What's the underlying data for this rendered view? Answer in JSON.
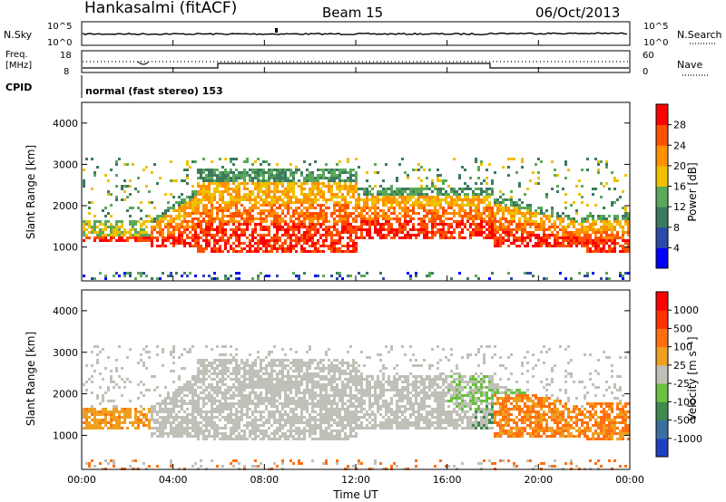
{
  "header": {
    "station": "Hankasalmi (fitACF)",
    "beam": "Beam 15",
    "date": "06/Oct/2013"
  },
  "noise_panel": {
    "left_label": "N.Sky",
    "left_ticks": [
      "10^5",
      "10^0"
    ],
    "right_label": "N.Search",
    "right_ticks": [
      "10^5",
      "10^0"
    ]
  },
  "freq_panel": {
    "left_label_line1": "Freq.",
    "left_label_line2": "[MHz]",
    "left_ticks": [
      "18",
      "8"
    ],
    "right_label": "Nave",
    "right_ticks": [
      "60",
      "0"
    ]
  },
  "cpid": {
    "label": "CPID",
    "text": "normal (fast stereo) 153"
  },
  "chart_data": [
    {
      "type": "heatmap",
      "name": "Power",
      "ylabel": "Slant Range [km]",
      "yticks": [
        "4000",
        "3000",
        "2000",
        "1000"
      ],
      "ylim": [
        180,
        4500
      ],
      "xlim": [
        0,
        24
      ],
      "colorbar_label": "Power [dB]",
      "colorbar_ticks": [
        "28",
        "24",
        "20",
        "16",
        "12",
        "8",
        "4"
      ],
      "colors": [
        "#0000ff",
        "#2c4aa8",
        "#3d7a5e",
        "#5aa85a",
        "#f0c000",
        "#ff9000",
        "#ff5000",
        "#ff0000"
      ]
    },
    {
      "type": "heatmap",
      "name": "Velocity",
      "ylabel": "Slant Range [km]",
      "yticks": [
        "4000",
        "3000",
        "2000",
        "1000"
      ],
      "ylim": [
        180,
        4500
      ],
      "xlim": [
        0,
        24
      ],
      "colorbar_label": "Velocity [m s⁻¹]",
      "colorbar_ticks": [
        "1000",
        "500",
        "100",
        "25",
        "-25",
        "-100",
        "-500",
        "-1000"
      ],
      "colors": [
        "#2040c0",
        "#3a70a0",
        "#3e8a4e",
        "#6ac040",
        "#c0c0b8",
        "#f0a020",
        "#ff7010",
        "#ff3000",
        "#ff0000"
      ]
    }
  ],
  "xaxis": {
    "ticks": [
      "00:00",
      "04:00",
      "08:00",
      "12:00",
      "16:00",
      "20:00",
      "00:00"
    ],
    "label": "Time UT"
  }
}
